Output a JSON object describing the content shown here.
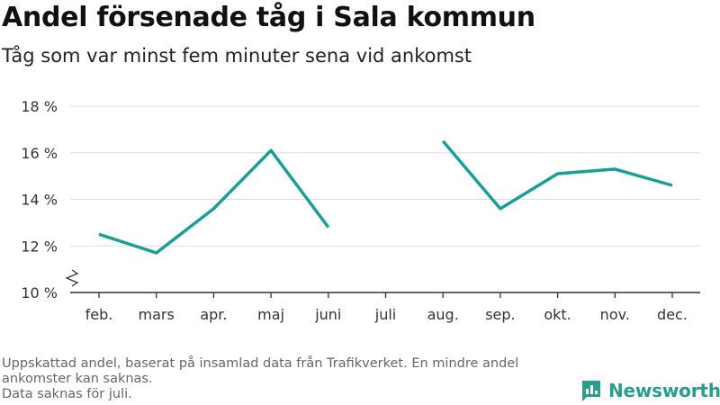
{
  "title": "Andel försenade tåg i Sala kommun",
  "subtitle": "Tåg som var minst fem minuter sena vid ankomst",
  "footnote": [
    "Uppskattad andel, baserat på insamlad data från Trafikverket. En mindre andel",
    "ankomster kan saknas.",
    "Data saknas för juli."
  ],
  "brand": {
    "name": "Newsworthy",
    "icon": "newsworthy-logo-icon"
  },
  "colors": {
    "line": "#1a9e96",
    "grid": "#dddddd",
    "axis": "#333333",
    "brand": "#2a9d8f"
  },
  "chart_data": {
    "type": "line",
    "categories": [
      "feb.",
      "mars",
      "apr.",
      "maj",
      "juni",
      "juli",
      "aug.",
      "sep.",
      "okt.",
      "nov.",
      "dec."
    ],
    "series": [
      {
        "values": [
          12.5,
          11.7,
          13.6,
          16.1,
          12.8,
          null,
          16.5,
          13.6,
          15.1,
          15.3,
          14.6
        ]
      }
    ],
    "ylim": [
      10,
      18
    ],
    "yticks": [
      10,
      12,
      14,
      16,
      18
    ],
    "ytick_labels": [
      "10 %",
      "12 %",
      "14 %",
      "16 %",
      "18 %"
    ],
    "y_axis_break": true,
    "grid": true
  }
}
